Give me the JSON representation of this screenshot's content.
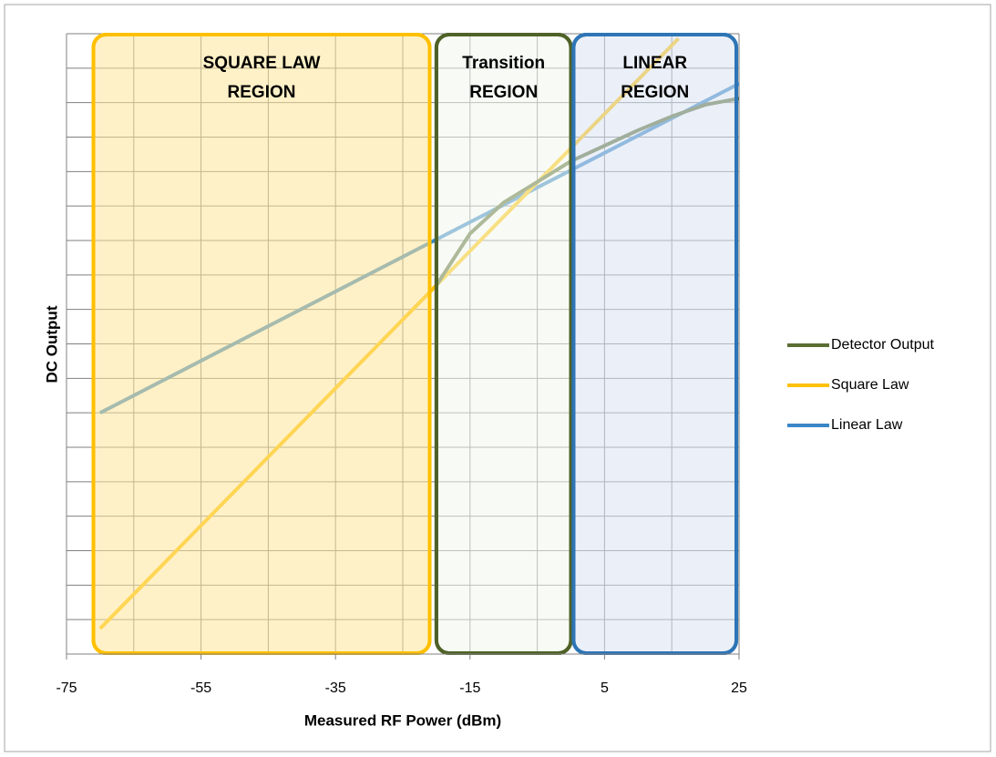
{
  "chart_data": {
    "type": "line",
    "xlabel": "Measured RF Power (dBm)",
    "ylabel": "DC Output",
    "xlim": [
      -75,
      25
    ],
    "xticks": [
      -75,
      -55,
      -35,
      -15,
      5,
      25
    ],
    "x_minor_grid": [
      -65,
      -45,
      -25,
      -5,
      15
    ],
    "ylim": [
      0,
      18
    ],
    "yticks": [
      0,
      1,
      2,
      3,
      4,
      5,
      6,
      7,
      8,
      9,
      10,
      11,
      12,
      13,
      14,
      15,
      16,
      17,
      18
    ],
    "grid": true,
    "legend": "right",
    "regions": [
      {
        "label": [
          "SQUARE LAW",
          "REGION"
        ],
        "x": [
          -71,
          -21
        ],
        "color": "#ffc000",
        "fill": "#ffe699"
      },
      {
        "label": [
          "Transition",
          "REGION"
        ],
        "x": [
          -20,
          0
        ],
        "color": "#4f6228",
        "fill": "#f3f7ec"
      },
      {
        "label": [
          "LINEAR",
          "REGION"
        ],
        "x": [
          0.4,
          24.6
        ],
        "color": "#2e75b6",
        "fill": "#dae3f3"
      }
    ],
    "series": [
      {
        "name": "Detector Output",
        "color": "#5a6e33",
        "x": [
          -20,
          -15,
          -10,
          -5,
          0,
          5,
          10,
          15,
          20,
          25
        ],
        "values": [
          10.7,
          12.2,
          13.1,
          13.7,
          14.3,
          14.75,
          15.2,
          15.6,
          15.94,
          16.12
        ]
      },
      {
        "name": "Square Law",
        "color": "#ffc000",
        "x": [
          -70,
          -20,
          16
        ],
        "values": [
          0.74,
          10.7,
          17.86
        ]
      },
      {
        "name": "Linear Law",
        "color": "#3a87c8",
        "x": [
          -70,
          -20,
          25
        ],
        "values": [
          7.0,
          12.03,
          16.55
        ]
      }
    ]
  }
}
